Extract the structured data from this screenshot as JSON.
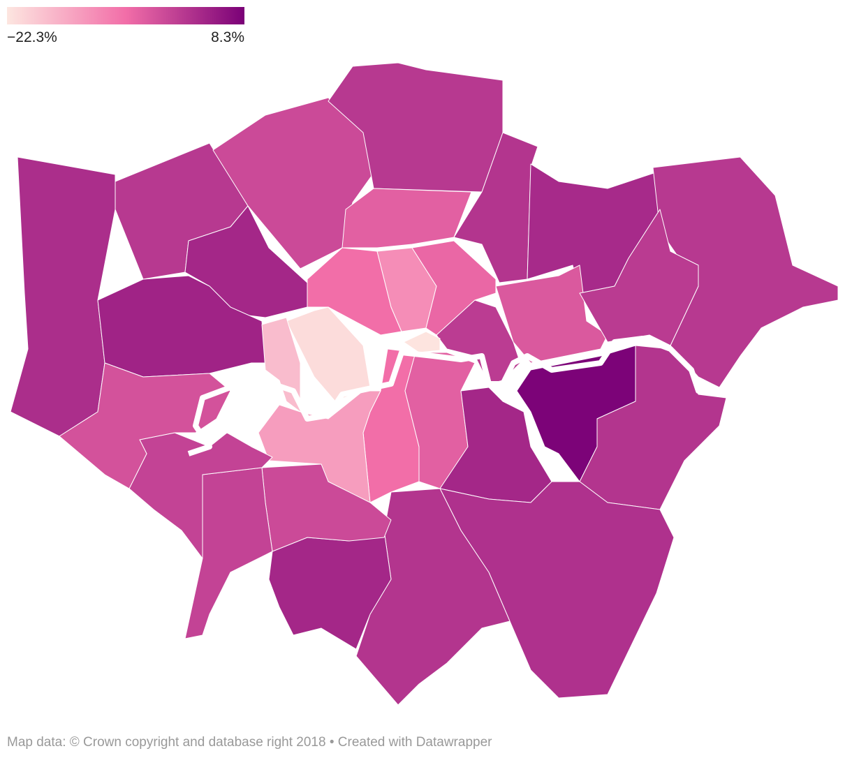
{
  "legend": {
    "min": {
      "value": -22.3,
      "label": "−22.3%"
    },
    "max": {
      "value": 8.3,
      "label": "8.3%"
    },
    "colors": [
      "#fde6e0",
      "#f26ea8",
      "#7a0177"
    ]
  },
  "map": {
    "values": [
      2,
      0.5,
      -2,
      0.5,
      1,
      2.5,
      0.5,
      3,
      3.5,
      -5,
      -7,
      -11,
      -6,
      -4,
      0.2,
      0,
      -22,
      -21,
      -17,
      -7,
      -5,
      -13,
      3,
      8,
      1,
      1.5,
      1,
      3,
      -2,
      -1,
      -1,
      -3
    ]
  },
  "footer": "Map data: © Crown copyright and database right 2018  • Created with Datawrapper"
}
